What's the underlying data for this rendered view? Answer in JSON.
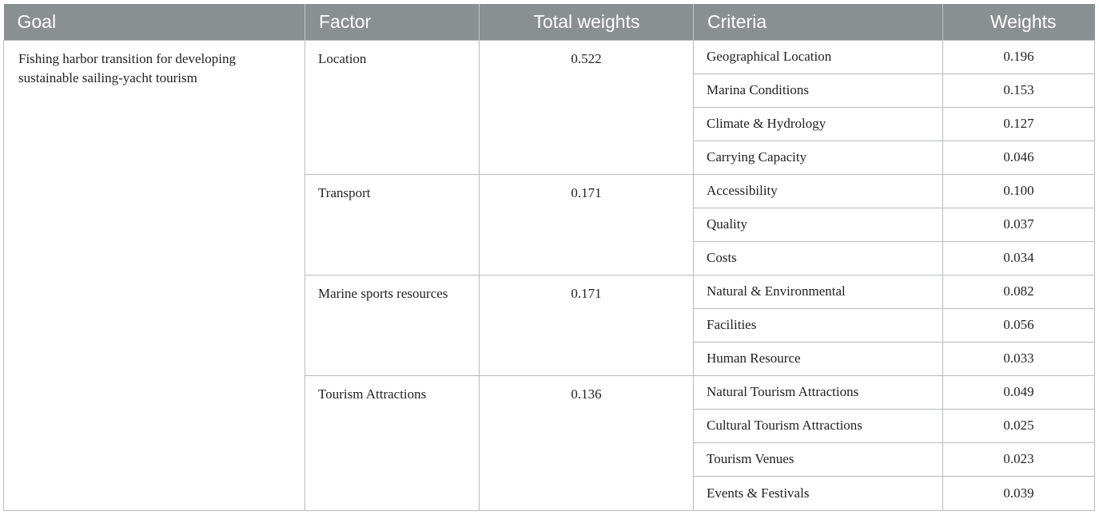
{
  "headers": {
    "goal": "Goal",
    "factor": "Factor",
    "total_weights": "Total weights",
    "criteria": "Criteria",
    "weights": "Weights"
  },
  "goal": "Fishing harbor transition for developing sustainable sailing-yacht tourism",
  "factors": [
    {
      "name": "Location",
      "total": "0.522",
      "criteria": [
        {
          "name": "Geographical Location",
          "weight": "0.196"
        },
        {
          "name": "Marina Conditions",
          "weight": "0.153"
        },
        {
          "name": "Climate & Hydrology",
          "weight": "0.127"
        },
        {
          "name": "Carrying Capacity",
          "weight": "0.046"
        }
      ]
    },
    {
      "name": "Transport",
      "total": "0.171",
      "criteria": [
        {
          "name": "Accessibility",
          "weight": "0.100"
        },
        {
          "name": "Quality",
          "weight": "0.037"
        },
        {
          "name": "Costs",
          "weight": "0.034"
        }
      ]
    },
    {
      "name": "Marine sports resources",
      "total": "0.171",
      "criteria": [
        {
          "name": "Natural & Environmental",
          "weight": "0.082"
        },
        {
          "name": "Facilities",
          "weight": "0.056"
        },
        {
          "name": "Human Resource",
          "weight": "0.033"
        }
      ]
    },
    {
      "name": "Tourism Attractions",
      "total": "0.136",
      "criteria": [
        {
          "name": "Natural Tourism Attractions",
          "weight": "0.049"
        },
        {
          "name": "Cultural Tourism Attractions",
          "weight": "0.025"
        },
        {
          "name": "Tourism Venues",
          "weight": "0.023"
        },
        {
          "name": "Events & Festivals",
          "weight": "0.039"
        }
      ]
    }
  ]
}
